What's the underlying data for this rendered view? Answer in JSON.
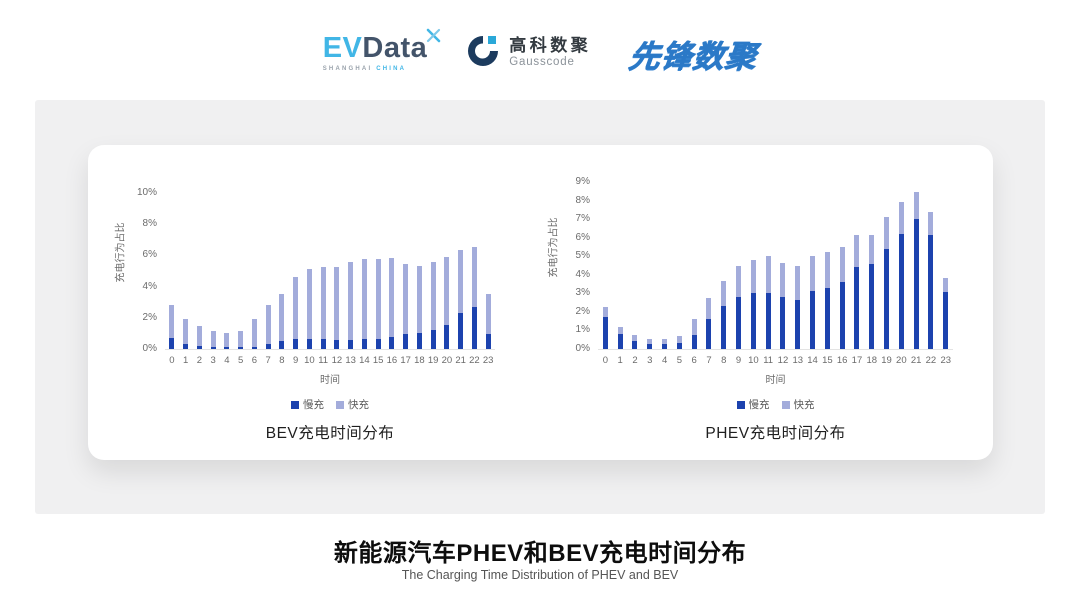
{
  "header": {
    "evdata_logo": {
      "ev": "EV",
      "data": "Data",
      "sub_shanghai": "SHANGHAI",
      "sub_china": "CHINA"
    },
    "gausscode_logo": {
      "cn_name": "高科数聚",
      "en_name": "Gausscode"
    },
    "pioneer_logo": {
      "text": "先锋数聚"
    }
  },
  "colors": {
    "slow": "#1c42ae",
    "fast": "#a3acdb",
    "axis_text": "#6b6b6b",
    "evdata_blue": "#41b6e6",
    "evdata_dark": "#43546a",
    "gauss_navy": "#1c3b5e",
    "gauss_cyan": "#2aa8d8",
    "pioneer_blue": "#2b79c7"
  },
  "chart_data": [
    {
      "type": "bar",
      "stacked": true,
      "title": "BEV充电时间分布",
      "xlabel": "时间",
      "ylabel": "充电行为占比",
      "ylim": [
        0,
        10
      ],
      "yticks": [
        0,
        2,
        4,
        6,
        8,
        10
      ],
      "ytick_suffix": "%",
      "legend_position": "bottom",
      "grid": false,
      "categories": [
        "0",
        "1",
        "2",
        "3",
        "4",
        "5",
        "6",
        "7",
        "8",
        "9",
        "10",
        "11",
        "12",
        "13",
        "14",
        "15",
        "16",
        "17",
        "18",
        "19",
        "20",
        "21",
        "22",
        "23"
      ],
      "series": [
        {
          "name": "慢充",
          "color_key": "slow",
          "values": [
            0.7,
            0.35,
            0.2,
            0.1,
            0.1,
            0.1,
            0.15,
            0.35,
            0.5,
            0.65,
            0.65,
            0.65,
            0.6,
            0.6,
            0.65,
            0.65,
            0.8,
            0.95,
            1.05,
            1.25,
            1.55,
            2.3,
            2.7,
            0.95
          ]
        },
        {
          "name": "快充",
          "color_key": "fast",
          "values": [
            2.15,
            1.55,
            1.3,
            1.05,
            0.95,
            1.05,
            1.8,
            2.45,
            3.05,
            3.95,
            4.5,
            4.6,
            4.65,
            5.0,
            5.15,
            5.15,
            5.05,
            4.5,
            4.25,
            4.3,
            4.35,
            4.05,
            3.85,
            2.6
          ]
        }
      ]
    },
    {
      "type": "bar",
      "stacked": true,
      "title": "PHEV充电时间分布",
      "xlabel": "时间",
      "ylabel": "充电行为占比",
      "ylim": [
        0,
        9
      ],
      "yticks": [
        0,
        1,
        2,
        3,
        4,
        5,
        6,
        7,
        8,
        9
      ],
      "ytick_suffix": "%",
      "legend_position": "bottom",
      "grid": false,
      "categories": [
        "0",
        "1",
        "2",
        "3",
        "4",
        "5",
        "6",
        "7",
        "8",
        "9",
        "10",
        "11",
        "12",
        "13",
        "14",
        "15",
        "16",
        "17",
        "18",
        "19",
        "20",
        "21",
        "22",
        "23"
      ],
      "series": [
        {
          "name": "慢充",
          "color_key": "slow",
          "values": [
            1.75,
            0.8,
            0.45,
            0.25,
            0.25,
            0.3,
            0.75,
            1.6,
            2.3,
            2.8,
            3.0,
            3.0,
            2.8,
            2.65,
            3.1,
            3.3,
            3.6,
            4.4,
            4.6,
            5.4,
            6.2,
            7.0,
            6.15,
            3.05
          ]
        },
        {
          "name": "快充",
          "color_key": "fast",
          "values": [
            0.5,
            0.4,
            0.3,
            0.3,
            0.3,
            0.4,
            0.85,
            1.15,
            1.35,
            1.7,
            1.8,
            2.0,
            1.85,
            1.85,
            1.9,
            1.95,
            1.9,
            1.75,
            1.55,
            1.7,
            1.75,
            1.45,
            1.25,
            0.8
          ]
        }
      ]
    }
  ],
  "footer": {
    "title": "新能源汽车PHEV和BEV充电时间分布",
    "subtitle": "The Charging Time Distribution of PHEV and BEV"
  }
}
